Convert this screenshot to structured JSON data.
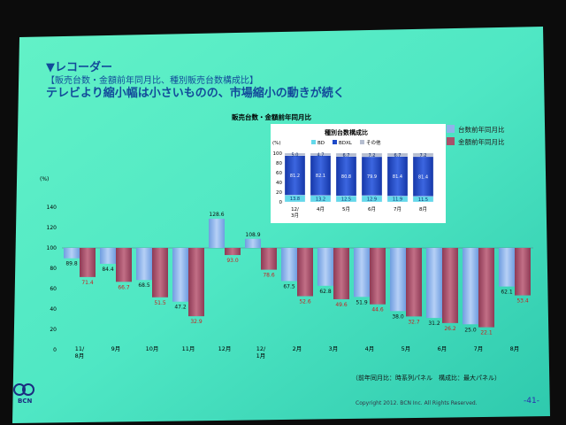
{
  "slide": {
    "section": "▼レコーダー",
    "subtitle": "【販売台数・金額前年同月比、種別販売台数構成比】",
    "headline": "テレビより縮小幅は小さいものの、市場縮小の動きが続く",
    "footnote": "（前年同月比：時系列パネル　構成比：最大パネル）",
    "copyright": "Copyright 2012. BCN Inc. All Rights Reserved.",
    "page_number": "-41-",
    "logo_text": "BCN",
    "colors": {
      "units_series": "#8fb4ea",
      "amount_series": "#a8506a",
      "bd": "#63d8ea",
      "bdxl": "#1d49c8",
      "other": "#b5bdcf",
      "value_label_red": "#c81e1e"
    }
  },
  "chart_data": [
    {
      "type": "bar",
      "title": "販売台数・金額前年同月比",
      "ylabel": "(%)",
      "yticks": [
        "0",
        "20",
        "40",
        "60",
        "80",
        "100",
        "120",
        "140"
      ],
      "ylim": [
        0,
        140
      ],
      "baseline": 100,
      "categories": [
        "11/\n8月",
        "9月",
        "10月",
        "11月",
        "12月",
        "12/\n1月",
        "2月",
        "3月",
        "4月",
        "5月",
        "6月",
        "7月",
        "8月"
      ],
      "series": [
        {
          "name": "台数前年同月比",
          "values": [
            89.8,
            84.4,
            68.5,
            47.2,
            128.6,
            108.9,
            67.5,
            62.8,
            51.9,
            38.0,
            31.2,
            25.0,
            62.1
          ]
        },
        {
          "name": "金額前年同月比",
          "values": [
            71.4,
            66.7,
            51.5,
            32.9,
            93.0,
            78.6,
            52.6,
            49.6,
            44.6,
            32.7,
            26.2,
            22.1,
            53.4
          ]
        }
      ],
      "legend_position": "top-right",
      "grid": false
    },
    {
      "type": "bar",
      "stacked": true,
      "title": "種別台数構成比",
      "ylabel": "(%)",
      "yticks": [
        "0",
        "20",
        "40",
        "60",
        "80",
        "100"
      ],
      "ylim": [
        0,
        100
      ],
      "categories": [
        "12/\n3月",
        "4月",
        "5月",
        "6月",
        "7月",
        "8月"
      ],
      "series": [
        {
          "name": "BD",
          "values": [
            13.8,
            13.2,
            12.5,
            12.9,
            11.9,
            11.5
          ]
        },
        {
          "name": "BDXL",
          "values": [
            81.2,
            82.1,
            80.8,
            79.9,
            81.4,
            81.4
          ]
        },
        {
          "name": "その他",
          "values": [
            5.0,
            4.7,
            6.7,
            7.2,
            6.7,
            7.2
          ]
        }
      ],
      "legend_position": "top",
      "grid": false
    }
  ]
}
